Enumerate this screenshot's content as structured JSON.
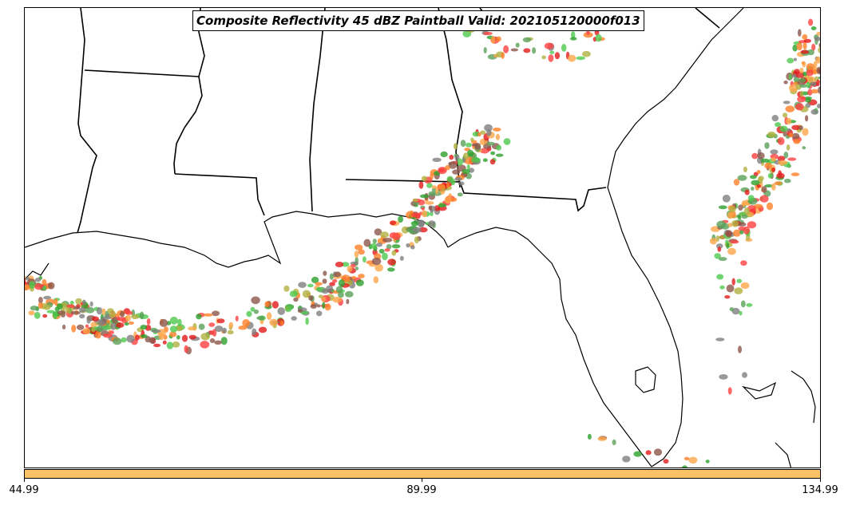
{
  "title": "Composite Reflectivity 45 dBZ Paintball Valid: 202105120000f013",
  "colorbar": {
    "color": "#FFC266",
    "ticks": [
      "44.99",
      "89.99",
      "134.99"
    ]
  },
  "palette": [
    "#E31A1C",
    "#FF7F27",
    "#FDA64A",
    "#4DC94D",
    "#2CA02C",
    "#8C564B",
    "#B0B040",
    "#7F7F7F",
    "#FF4040",
    "#5AA05A"
  ],
  "map_features": [
    "state-borders",
    "coastline",
    "storm-cells"
  ]
}
